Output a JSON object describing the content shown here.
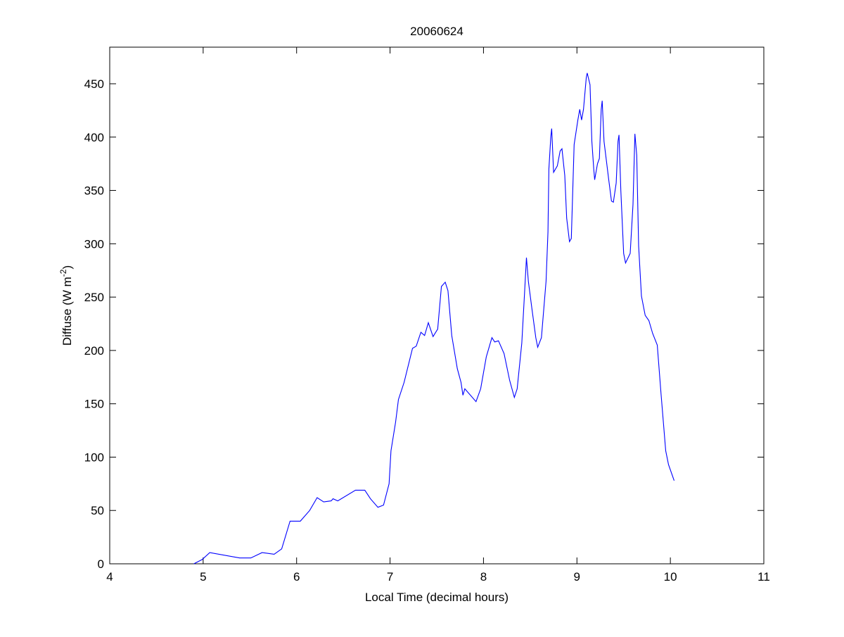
{
  "chart_data": {
    "type": "line",
    "title": "20060624",
    "xlabel": "Local Time (decimal hours)",
    "ylabel": "Diffuse (W m^-2)",
    "ylabel_parts": {
      "main": "Diffuse (W m",
      "sup": "-2",
      "close": ")"
    },
    "xlim": [
      4,
      11
    ],
    "ylim": [
      0,
      480
    ],
    "xticks": [
      4,
      5,
      6,
      7,
      8,
      9,
      10,
      11
    ],
    "yticks": [
      0,
      50,
      100,
      150,
      200,
      250,
      300,
      350,
      400,
      450
    ],
    "grid": false,
    "line_color": "#0000ff",
    "series": [
      {
        "x": [
          4.9,
          4.99,
          5.07,
          5.39,
          5.51,
          5.63,
          5.76,
          5.84,
          5.93,
          6.04,
          6.14,
          6.22,
          6.29,
          6.37,
          6.39,
          6.44,
          6.63,
          6.73,
          6.79,
          6.87,
          6.93,
          6.99,
          7.01,
          7.06,
          7.09,
          7.15,
          7.24,
          7.28,
          7.33,
          7.37,
          7.41,
          7.46,
          7.51,
          7.55,
          7.59,
          7.62,
          7.66,
          7.72,
          7.76,
          7.78,
          7.8,
          7.92,
          7.97,
          8.03,
          8.09,
          8.12,
          8.16,
          8.22,
          8.28,
          8.33,
          8.36,
          8.41,
          8.44,
          8.46,
          8.48,
          8.52,
          8.56,
          8.58,
          8.62,
          8.67,
          8.69,
          8.7,
          8.72,
          8.73,
          8.75,
          8.79,
          8.82,
          8.84,
          8.87,
          8.89,
          8.92,
          8.94,
          8.97,
          9.01,
          9.03,
          9.05,
          9.07,
          9.1,
          9.11,
          9.14,
          9.16,
          9.18,
          9.19,
          9.22,
          9.24,
          9.26,
          9.27,
          9.29,
          9.34,
          9.37,
          9.39,
          9.42,
          9.44,
          9.45,
          9.47,
          9.5,
          9.52,
          9.57,
          9.6,
          9.62,
          9.64,
          9.66,
          9.69,
          9.73,
          9.77,
          9.81,
          9.86,
          9.9,
          9.95,
          9.98,
          10.04
        ],
        "y": [
          0,
          4,
          10.5,
          5.5,
          5.5,
          10.5,
          9,
          14,
          40,
          40,
          50,
          62,
          58,
          59,
          61,
          59,
          69,
          69,
          61,
          53,
          55,
          75,
          106,
          133,
          154,
          170,
          202,
          204,
          217,
          214,
          226,
          213,
          220,
          260,
          264,
          256,
          214,
          183,
          170,
          158,
          164,
          152,
          164,
          194,
          212,
          208,
          209,
          197,
          172,
          156,
          164,
          207,
          255,
          287,
          265,
          238,
          212,
          203,
          212,
          265,
          311,
          370,
          400,
          408,
          367,
          373,
          387,
          389,
          364,
          324,
          302,
          305,
          393,
          416,
          426,
          416,
          426,
          456,
          460,
          449,
          396,
          370,
          360,
          375,
          380,
          426,
          434,
          396,
          360,
          340,
          339,
          357,
          396,
          402,
          350,
          291,
          282,
          291,
          337,
          403,
          383,
          298,
          251,
          233,
          228,
          216,
          205,
          159,
          106,
          93,
          78
        ]
      }
    ]
  }
}
